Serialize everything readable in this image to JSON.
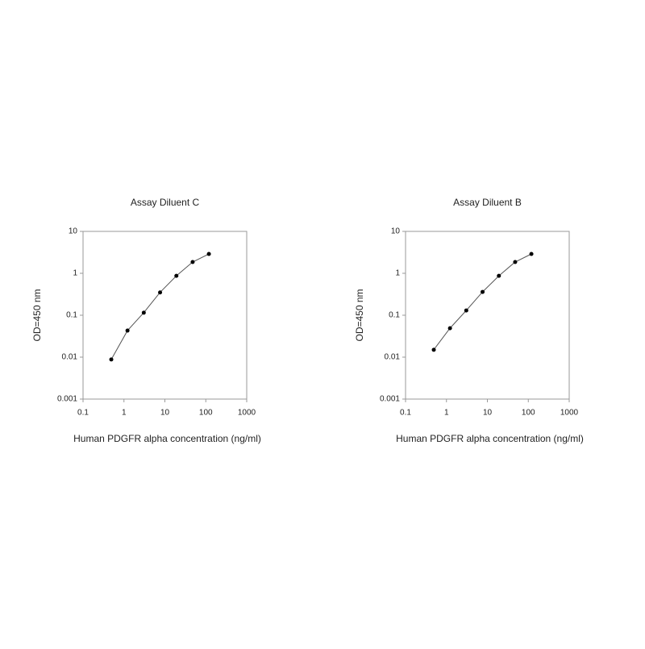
{
  "chart_data": [
    {
      "type": "line",
      "title": "Assay Diluent C",
      "xlabel": "Human PDGFR alpha concentration (ng/ml)",
      "ylabel": "OD=450 nm",
      "xscale": "log",
      "yscale": "log",
      "xlim": [
        0.1,
        1000
      ],
      "ylim": [
        0.001,
        10
      ],
      "xticks": [
        0.1,
        1,
        10,
        100,
        1000
      ],
      "yticks": [
        0.001,
        0.01,
        0.1,
        1,
        10
      ],
      "x": [
        0.49,
        1.22,
        3.05,
        7.63,
        19.1,
        47.7,
        119
      ],
      "values": [
        0.0088,
        0.043,
        0.115,
        0.35,
        0.87,
        1.86,
        2.9
      ],
      "color": "#555555"
    },
    {
      "type": "line",
      "title": "Assay Diluent B",
      "xlabel": "Human PDGFR alpha concentration (ng/ml)",
      "ylabel": "OD=450 nm",
      "xscale": "log",
      "yscale": "log",
      "xlim": [
        0.1,
        1000
      ],
      "ylim": [
        0.001,
        10
      ],
      "xticks": [
        0.1,
        1,
        10,
        100,
        1000
      ],
      "yticks": [
        0.001,
        0.01,
        0.1,
        1,
        10
      ],
      "x": [
        0.49,
        1.22,
        3.05,
        7.63,
        19.1,
        47.7,
        119
      ],
      "values": [
        0.015,
        0.049,
        0.13,
        0.36,
        0.87,
        1.86,
        2.9
      ],
      "color": "#555555"
    }
  ]
}
